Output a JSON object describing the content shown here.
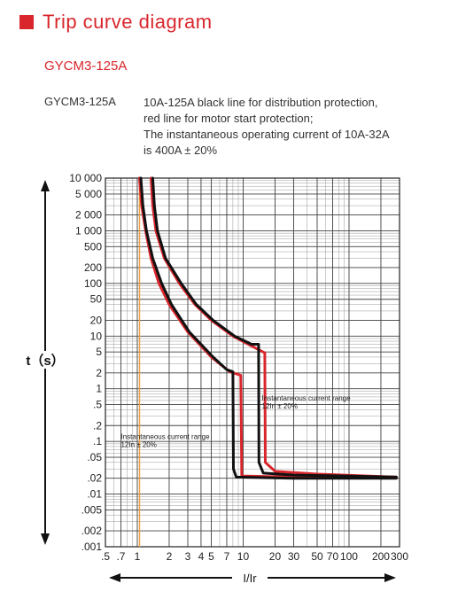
{
  "header": {
    "title": "Trip curve diagram",
    "model": "GYCM3-125A"
  },
  "description": {
    "model": "GYCM3-125A",
    "lines": [
      "10A-125A black line for distribution protection,",
      "red line for motor start protection;",
      "The instantaneous operating current of 10A-32A",
      "is 400A ± 20%"
    ]
  },
  "colors": {
    "accent": "#d9262c",
    "distribution_line": "#111111",
    "motor_line": "#d9262c",
    "marker_line": "#f0a040"
  },
  "chart_data": {
    "type": "line",
    "title": "",
    "xlabel": "I/Ir",
    "ylabel": "t（s）",
    "xscale": "log",
    "yscale": "log",
    "xlim": [
      0.5,
      300
    ],
    "ylim": [
      0.001,
      10000
    ],
    "grid": true,
    "x_ticks": [
      {
        "v": 0.5,
        "label": ".5"
      },
      {
        "v": 0.7,
        "label": ".7"
      },
      {
        "v": 1,
        "label": "1"
      },
      {
        "v": 2,
        "label": "2"
      },
      {
        "v": 3,
        "label": "3"
      },
      {
        "v": 4,
        "label": "4"
      },
      {
        "v": 5,
        "label": "5"
      },
      {
        "v": 7,
        "label": "7"
      },
      {
        "v": 10,
        "label": "10"
      },
      {
        "v": 20,
        "label": "20"
      },
      {
        "v": 30,
        "label": "30"
      },
      {
        "v": 50,
        "label": "50"
      },
      {
        "v": 70,
        "label": "70"
      },
      {
        "v": 100,
        "label": "100"
      },
      {
        "v": 200,
        "label": "200"
      },
      {
        "v": 300,
        "label": "300"
      }
    ],
    "y_ticks": [
      {
        "v": 10000,
        "label": "10 000"
      },
      {
        "v": 5000,
        "label": "5 000"
      },
      {
        "v": 2000,
        "label": "2 000"
      },
      {
        "v": 1000,
        "label": "1 000"
      },
      {
        "v": 500,
        "label": "500"
      },
      {
        "v": 200,
        "label": "200"
      },
      {
        "v": 100,
        "label": "100"
      },
      {
        "v": 50,
        "label": "50"
      },
      {
        "v": 20,
        "label": "20"
      },
      {
        "v": 10,
        "label": "10"
      },
      {
        "v": 5,
        "label": "5"
      },
      {
        "v": 2,
        "label": "2"
      },
      {
        "v": 1,
        "label": "1"
      },
      {
        "v": 0.5,
        "label": ".5"
      },
      {
        "v": 0.2,
        "label": ".2"
      },
      {
        "v": 0.1,
        "label": ".1"
      },
      {
        "v": 0.05,
        "label": ".05"
      },
      {
        "v": 0.02,
        "label": ".02"
      },
      {
        "v": 0.01,
        "label": ".01"
      },
      {
        "v": 0.005,
        "label": ".005"
      },
      {
        "v": 0.002,
        "label": ".002"
      },
      {
        "v": 0.001,
        "label": ".001"
      }
    ],
    "marker_x": 1.05,
    "series": [
      {
        "style": "red",
        "points": [
          [
            1.05,
            10000
          ],
          [
            1.1,
            3000
          ],
          [
            1.2,
            1000
          ],
          [
            1.35,
            300
          ],
          [
            1.6,
            100
          ],
          [
            2.0,
            40
          ],
          [
            3.0,
            12
          ],
          [
            5.0,
            4
          ],
          [
            7.5,
            2.1
          ],
          [
            9.5,
            1.8
          ],
          [
            9.7,
            0.022
          ],
          [
            11,
            0.022
          ],
          [
            30,
            0.021
          ],
          [
            280,
            0.021
          ]
        ]
      },
      {
        "style": "black",
        "points": [
          [
            1.08,
            10000
          ],
          [
            1.13,
            3000
          ],
          [
            1.22,
            1000
          ],
          [
            1.4,
            300
          ],
          [
            1.7,
            100
          ],
          [
            2.1,
            40
          ],
          [
            3.1,
            12
          ],
          [
            5.2,
            4
          ],
          [
            7.0,
            2.3
          ],
          [
            8.0,
            2.1
          ],
          [
            8.1,
            0.03
          ],
          [
            8.6,
            0.021
          ],
          [
            30,
            0.02
          ],
          [
            280,
            0.02
          ]
        ]
      },
      {
        "style": "red",
        "points": [
          [
            1.35,
            10000
          ],
          [
            1.4,
            3000
          ],
          [
            1.5,
            1000
          ],
          [
            1.8,
            300
          ],
          [
            2.5,
            100
          ],
          [
            3.5,
            40
          ],
          [
            5.0,
            20
          ],
          [
            8.0,
            10
          ],
          [
            12,
            6.5
          ],
          [
            16,
            4.8
          ],
          [
            16.2,
            0.04
          ],
          [
            20,
            0.027
          ],
          [
            50,
            0.024
          ],
          [
            280,
            0.021
          ]
        ]
      },
      {
        "style": "black",
        "points": [
          [
            1.4,
            10000
          ],
          [
            1.45,
            3000
          ],
          [
            1.55,
            1000
          ],
          [
            1.85,
            300
          ],
          [
            2.6,
            100
          ],
          [
            3.6,
            40
          ],
          [
            5.2,
            20
          ],
          [
            8.3,
            10
          ],
          [
            12,
            7
          ],
          [
            14,
            7
          ],
          [
            14.1,
            0.04
          ],
          [
            15.5,
            0.025
          ],
          [
            30,
            0.023
          ],
          [
            100,
            0.022
          ],
          [
            280,
            0.021
          ]
        ]
      }
    ],
    "annotations": [
      {
        "id": "ann1",
        "text1": "Instantaneous current range",
        "text2": "12In ± 20%",
        "x": 15,
        "y": 0.6
      },
      {
        "id": "ann2",
        "text1": "Instantaneous current range",
        "text2": "12In ± 20%",
        "x": 0.7,
        "y": 0.11
      }
    ]
  }
}
